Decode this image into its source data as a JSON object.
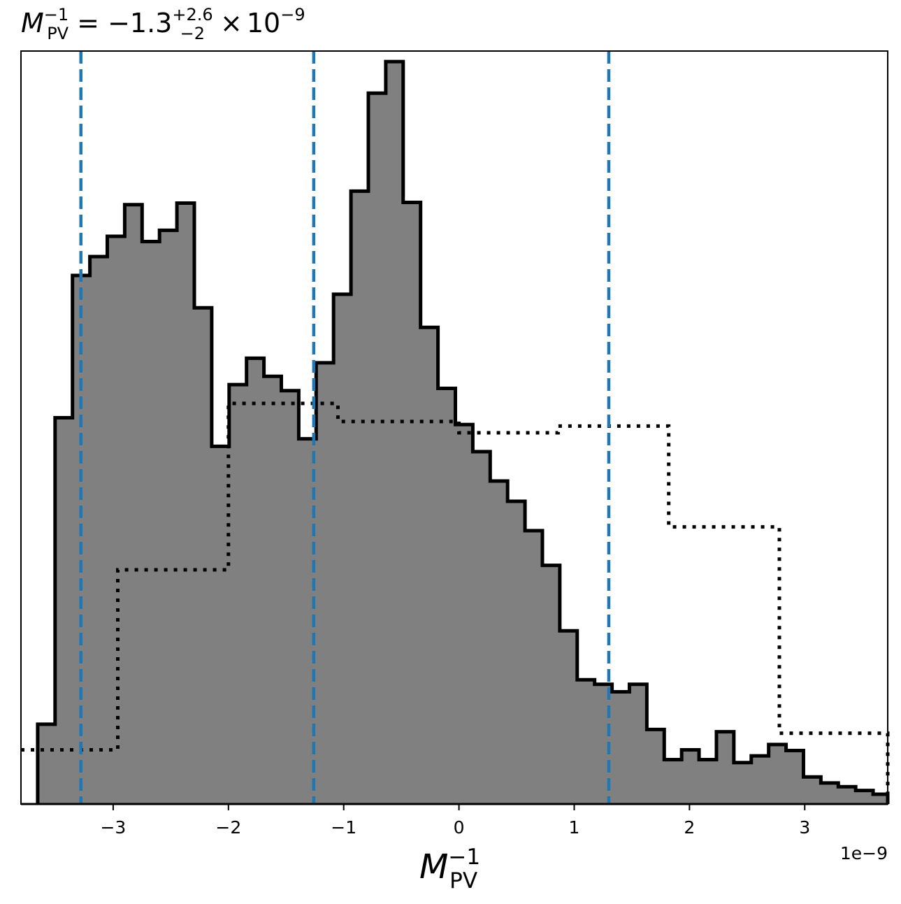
{
  "chart_data": {
    "type": "histogram",
    "title": {
      "symbol": "M",
      "symbol_sup": "−1",
      "symbol_sub": "PV",
      "equals": " = ",
      "median": "−1.3",
      "err_plus": "+2.6",
      "err_minus": "−2",
      "times": "×",
      "power_base": "10",
      "power_exp": "−9"
    },
    "xlabel": {
      "symbol": "M",
      "sup": "−1",
      "sub": "PV"
    },
    "offset_text": "1e−9",
    "x_scale": "1e-9",
    "xlim": [
      -3.8,
      3.72
    ],
    "ylim": [
      0,
      1.0
    ],
    "grid": false,
    "x_ticks": [
      {
        "value": -3,
        "label": "−3"
      },
      {
        "value": -2,
        "label": "−2"
      },
      {
        "value": -1,
        "label": "−1"
      },
      {
        "value": 0,
        "label": "0"
      },
      {
        "value": 1,
        "label": "1"
      },
      {
        "value": 2,
        "label": "2"
      },
      {
        "value": 3,
        "label": "3"
      }
    ],
    "posterior": {
      "style": "filled-step",
      "fill": "#808080",
      "edge": "#000000",
      "bin_edges": [
        -3.655,
        -3.504,
        -3.353,
        -3.202,
        -3.051,
        -2.9,
        -2.749,
        -2.598,
        -2.447,
        -2.296,
        -2.145,
        -1.994,
        -1.843,
        -1.692,
        -1.541,
        -1.39,
        -1.239,
        -1.088,
        -0.937,
        -0.786,
        -0.635,
        -0.484,
        -0.333,
        -0.182,
        -0.031,
        0.12,
        0.271,
        0.422,
        0.573,
        0.724,
        0.875,
        1.026,
        1.177,
        1.328,
        1.479,
        1.63,
        1.781,
        1.932,
        2.083,
        2.234,
        2.385,
        2.536,
        2.687,
        2.838,
        2.989,
        3.14,
        3.291,
        3.442,
        3.593,
        3.72
      ],
      "values": [
        0.106,
        0.513,
        0.702,
        0.727,
        0.754,
        0.796,
        0.747,
        0.762,
        0.798,
        0.659,
        0.475,
        0.557,
        0.592,
        0.568,
        0.549,
        0.485,
        0.586,
        0.677,
        0.814,
        0.944,
        0.986,
        0.799,
        0.633,
        0.552,
        0.504,
        0.468,
        0.429,
        0.402,
        0.363,
        0.317,
        0.23,
        0.165,
        0.159,
        0.149,
        0.159,
        0.099,
        0.059,
        0.072,
        0.059,
        0.096,
        0.055,
        0.064,
        0.079,
        0.071,
        0.036,
        0.028,
        0.023,
        0.018,
        0.013,
        0.0
      ]
    },
    "prior": {
      "style": "dotted-step",
      "color": "#000000",
      "bin_edges": [
        -3.8,
        -2.96,
        -2.0,
        -1.05,
        0.0,
        0.86,
        1.82,
        2.78,
        3.72
      ],
      "values": [
        0.072,
        0.311,
        0.532,
        0.508,
        0.493,
        0.502,
        0.368,
        0.094
      ]
    },
    "quantile_lines": {
      "color": "#1f77b4",
      "style": "dashed",
      "x": [
        -3.28,
        -1.26,
        1.3
      ]
    }
  }
}
